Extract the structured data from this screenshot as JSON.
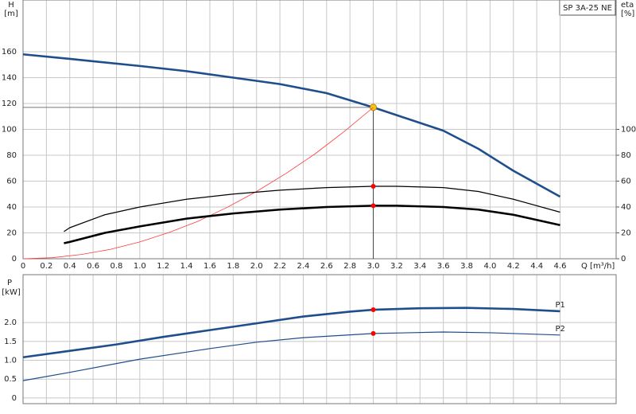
{
  "chart_data": [
    {
      "type": "line",
      "title": "SP 3A-25 NE",
      "ylabel": "H",
      "yunit": "[m]",
      "y2label": "eta",
      "y2unit": "[%]",
      "xlabel": "Q [m³/h]",
      "xlim": [
        0,
        5.08
      ],
      "xticks": [
        0,
        0.2,
        0.4,
        0.6,
        0.8,
        {
          "value": 1,
          "label": "1.0"
        },
        1.2,
        1.4,
        1.6,
        1.8,
        {
          "value": 2,
          "label": "2.0"
        },
        2.2,
        2.4,
        2.6,
        2.8,
        {
          "value": 3,
          "label": "3.0"
        },
        3.2,
        3.4,
        3.6,
        3.8,
        {
          "value": 4,
          "label": "4.0"
        },
        4.2,
        4.4,
        4.6
      ],
      "ylim": [
        0,
        200
      ],
      "yticks": [
        0,
        20,
        40,
        60,
        80,
        100,
        120,
        140,
        160
      ],
      "y2lim": [
        0,
        200
      ],
      "y2ticks": [
        0,
        20,
        40,
        60,
        80,
        100
      ],
      "grid": true,
      "operating_point": {
        "x": 3.0,
        "y": 117
      },
      "series": [
        {
          "color": "#1f4e8c",
          "line": "thick",
          "marker_color": "#f5c518",
          "x": [
            0,
            0.4,
            1.0,
            1.4,
            1.8,
            2.2,
            2.6,
            3.0,
            3.2,
            3.6,
            3.9,
            4.2,
            4.6
          ],
          "values": [
            158,
            154.5,
            149,
            145,
            140,
            135,
            128,
            117,
            111,
            99,
            85,
            68,
            48
          ]
        },
        {
          "color": "#ff3b3b",
          "line": "hair",
          "x": [
            0,
            0.25,
            0.5,
            0.75,
            1.0,
            1.25,
            1.5,
            1.75,
            2.0,
            2.25,
            2.5,
            2.75,
            3.0
          ],
          "values": [
            0,
            0.8,
            3.3,
            7.3,
            13,
            20.3,
            29,
            39.8,
            52,
            65.8,
            81,
            98.3,
            117
          ]
        },
        {
          "color": "#000000",
          "line": "thin",
          "axis": "y2",
          "marker_color": "#ff0000",
          "x": [
            0.35,
            0.4,
            0.7,
            1.0,
            1.4,
            1.8,
            2.2,
            2.6,
            3.0,
            3.2,
            3.6,
            3.9,
            4.2,
            4.6
          ],
          "values": [
            21,
            24,
            34,
            40,
            46,
            50,
            53,
            55,
            56,
            56,
            55,
            52,
            46,
            36
          ]
        },
        {
          "color": "#000000",
          "line": "thick",
          "axis": "y2",
          "marker_color": "#ff0000",
          "x": [
            0.35,
            0.4,
            0.7,
            1.0,
            1.4,
            1.8,
            2.2,
            2.6,
            3.0,
            3.2,
            3.6,
            3.9,
            4.2,
            4.6
          ],
          "values": [
            12,
            13,
            20,
            25,
            31,
            35,
            38,
            40,
            41,
            41,
            40,
            38,
            34,
            26
          ]
        }
      ]
    },
    {
      "type": "line",
      "ylabel": "P",
      "yunit": "[kW]",
      "xlim": [
        0,
        5.08
      ],
      "ylim": [
        -0.15,
        3.27
      ],
      "yticks": [
        0,
        0.5,
        {
          "value": 1,
          "label": "1.0"
        },
        1.5,
        {
          "value": 2,
          "label": "2.0"
        }
      ],
      "grid": true,
      "operating_x": 3.0,
      "series": [
        {
          "name": "P1",
          "color": "#1f4e8c",
          "line": "thick",
          "marker_color": "#ff0000",
          "x": [
            0,
            0.4,
            0.8,
            1.2,
            1.6,
            2.0,
            2.4,
            2.8,
            3.0,
            3.4,
            3.8,
            4.2,
            4.6
          ],
          "values": [
            1.08,
            1.25,
            1.42,
            1.62,
            1.8,
            1.98,
            2.16,
            2.29,
            2.34,
            2.38,
            2.39,
            2.36,
            2.3
          ]
        },
        {
          "name": "P2",
          "color": "#1f4e8c",
          "line": "thin",
          "marker_color": "#ff0000",
          "x": [
            0,
            0.4,
            1.0,
            1.6,
            2.0,
            2.4,
            3.0,
            3.6,
            4.0,
            4.6
          ],
          "values": [
            0.46,
            0.68,
            1.03,
            1.31,
            1.48,
            1.6,
            1.71,
            1.75,
            1.73,
            1.67
          ]
        }
      ]
    }
  ]
}
